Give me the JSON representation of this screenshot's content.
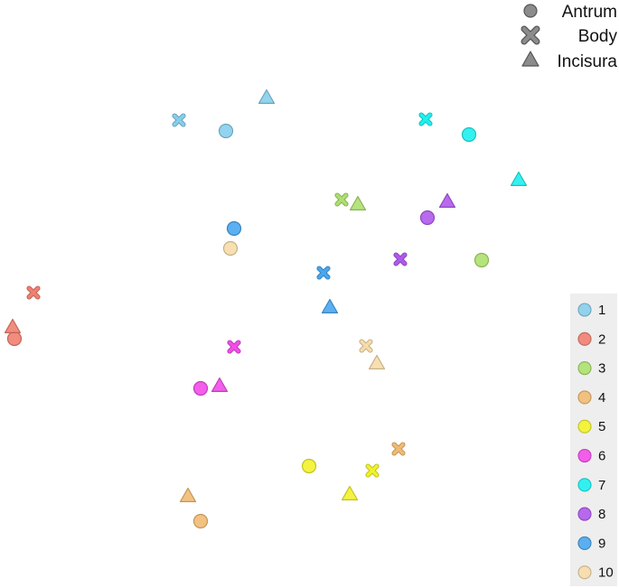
{
  "chart_data": {
    "type": "scatter",
    "title": "",
    "xlabel": "",
    "ylabel": "",
    "grid": false,
    "xlim": [
      0,
      685
    ],
    "ylim": [
      0,
      651
    ],
    "shape_legend": [
      {
        "label": "Antrum",
        "marker": "circle"
      },
      {
        "label": "Body",
        "marker": "x"
      },
      {
        "label": "Incisura",
        "marker": "triangle"
      }
    ],
    "group_legend_placement": "right",
    "groups": [
      {
        "name": "1",
        "color": "#87CEEB"
      },
      {
        "name": "2",
        "color": "#F08070"
      },
      {
        "name": "3",
        "color": "#ADE06E"
      },
      {
        "name": "4",
        "color": "#F2BB72"
      },
      {
        "name": "5",
        "color": "#F2F22B"
      },
      {
        "name": "6",
        "color": "#F24CE8"
      },
      {
        "name": "7",
        "color": "#1EF0F0"
      },
      {
        "name": "8",
        "color": "#B05AEC"
      },
      {
        "name": "9",
        "color": "#4AA6EE"
      },
      {
        "name": "10",
        "color": "#F7DCAA"
      }
    ],
    "points": [
      {
        "group": "1",
        "marker": "circle",
        "x": 250,
        "y": 506
      },
      {
        "group": "1",
        "marker": "x",
        "x": 198,
        "y": 518
      },
      {
        "group": "1",
        "marker": "triangle",
        "x": 295,
        "y": 543
      },
      {
        "group": "2",
        "marker": "circle",
        "x": 16,
        "y": 276
      },
      {
        "group": "2",
        "marker": "x",
        "x": 37,
        "y": 327
      },
      {
        "group": "2",
        "marker": "triangle",
        "x": 14,
        "y": 289
      },
      {
        "group": "3",
        "marker": "circle",
        "x": 533,
        "y": 363
      },
      {
        "group": "3",
        "marker": "x",
        "x": 378,
        "y": 430
      },
      {
        "group": "3",
        "marker": "triangle",
        "x": 396,
        "y": 425
      },
      {
        "group": "4",
        "marker": "circle",
        "x": 222,
        "y": 74
      },
      {
        "group": "4",
        "marker": "x",
        "x": 441,
        "y": 154
      },
      {
        "group": "4",
        "marker": "triangle",
        "x": 208,
        "y": 102
      },
      {
        "group": "5",
        "marker": "circle",
        "x": 342,
        "y": 135
      },
      {
        "group": "5",
        "marker": "x",
        "x": 412,
        "y": 130
      },
      {
        "group": "5",
        "marker": "triangle",
        "x": 387,
        "y": 104
      },
      {
        "group": "6",
        "marker": "circle",
        "x": 222,
        "y": 221
      },
      {
        "group": "6",
        "marker": "x",
        "x": 259,
        "y": 267
      },
      {
        "group": "6",
        "marker": "triangle",
        "x": 243,
        "y": 224
      },
      {
        "group": "7",
        "marker": "circle",
        "x": 519,
        "y": 502
      },
      {
        "group": "7",
        "marker": "x",
        "x": 471,
        "y": 519
      },
      {
        "group": "7",
        "marker": "triangle",
        "x": 574,
        "y": 452
      },
      {
        "group": "8",
        "marker": "circle",
        "x": 473,
        "y": 410
      },
      {
        "group": "8",
        "marker": "x",
        "x": 443,
        "y": 364
      },
      {
        "group": "8",
        "marker": "triangle",
        "x": 495,
        "y": 428
      },
      {
        "group": "9",
        "marker": "circle",
        "x": 259,
        "y": 398
      },
      {
        "group": "9",
        "marker": "x",
        "x": 358,
        "y": 349
      },
      {
        "group": "9",
        "marker": "triangle",
        "x": 365,
        "y": 311
      },
      {
        "group": "10",
        "marker": "circle",
        "x": 255,
        "y": 376
      },
      {
        "group": "10",
        "marker": "x",
        "x": 405,
        "y": 268
      },
      {
        "group": "10",
        "marker": "triangle",
        "x": 417,
        "y": 249
      }
    ]
  }
}
